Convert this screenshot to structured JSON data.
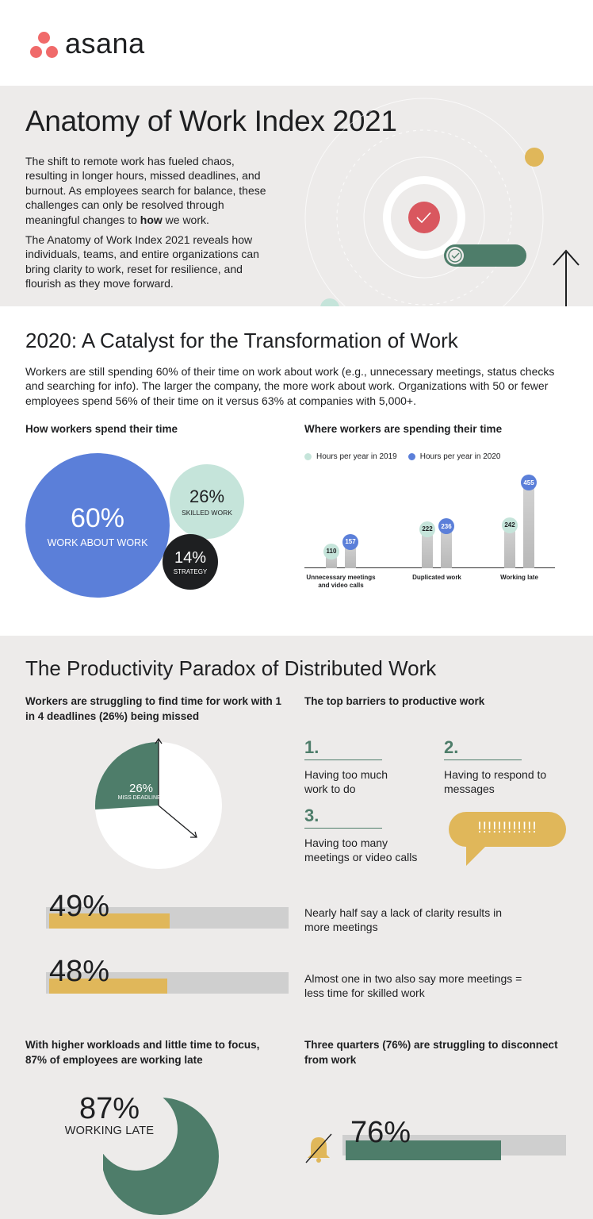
{
  "brand": {
    "name": "asana",
    "logo_color": "#f06a6a"
  },
  "hero": {
    "title": "Anatomy of Work Index 2021",
    "para1_a": "The shift to remote work has fueled chaos, resulting in longer hours, missed deadlines, and burnout. As employees search for balance, these challenges can only be resolved through meaningful changes to ",
    "para1_bold": "how",
    "para1_b": " we work.",
    "para2": "The Anatomy of Work Index 2021 reveals how individuals, teams, and entire organizations can bring clarity to work, reset for resilience, and flourish as they move forward."
  },
  "catalyst": {
    "title": "2020: A Catalyst for the Transformation of Work",
    "body": "Workers are still spending 60% of their time on work about work (e.g., unnecessary meetings, status checks and searching for info). The larger the company, the more work about work. Organizations with 50 or fewer employees spend 56% of their time on it versus 63% at companies with 5,000+.",
    "time_heading": "How workers spend their time",
    "bubbles": [
      {
        "pct": "60%",
        "label": "WORK ABOUT WORK",
        "color": "#5b7fd9"
      },
      {
        "pct": "26%",
        "label": "SKILLED WORK",
        "color": "#c5e4da"
      },
      {
        "pct": "14%",
        "label": "STRATEGY",
        "color": "#1e1f21"
      }
    ],
    "chart_heading": "Where workers are spending their time"
  },
  "chart_data": {
    "type": "bar",
    "categories": [
      "Unnecessary meetings and video calls",
      "Duplicated work",
      "Working late"
    ],
    "series": [
      {
        "name": "Hours per year in 2019",
        "values": [
          110,
          222,
          242
        ],
        "color": "#c5e4da"
      },
      {
        "name": "Hours per year in 2020",
        "values": [
          157,
          236,
          455
        ],
        "color": "#5b7fd9"
      }
    ]
  },
  "paradox": {
    "title": "The Productivity Paradox of Distributed Work",
    "deadlines_heading": "Workers are struggling to find time for work with 1 in 4 deadlines (26%) being missed",
    "deadlines_pct": "26%",
    "deadlines_label": "MISS DEADLINES",
    "deadlines_value": 26,
    "barriers_heading": "The top barriers to productive work",
    "barriers": [
      {
        "num": "1.",
        "text": "Having too much work to do"
      },
      {
        "num": "2.",
        "text": "Having to respond to messages"
      },
      {
        "num": "3.",
        "text": "Having too many meetings or video calls"
      }
    ],
    "speech_text": "!!!!!!!!!!!!",
    "stats": [
      {
        "pct": "49%",
        "value": 49,
        "text": "Nearly half say a lack of clarity results in more meetings"
      },
      {
        "pct": "48%",
        "value": 48,
        "text": "Almost one in two also say more meetings = less time for skilled work"
      }
    ],
    "late_heading": "With higher workloads and little time to focus, 87% of employees are working late",
    "late_pct": "87%",
    "late_label": "WORKING LATE",
    "disconnect_heading": "Three quarters (76%) are struggling to disconnect from work",
    "disconnect_pct": "76%",
    "disconnect_value": 76
  }
}
